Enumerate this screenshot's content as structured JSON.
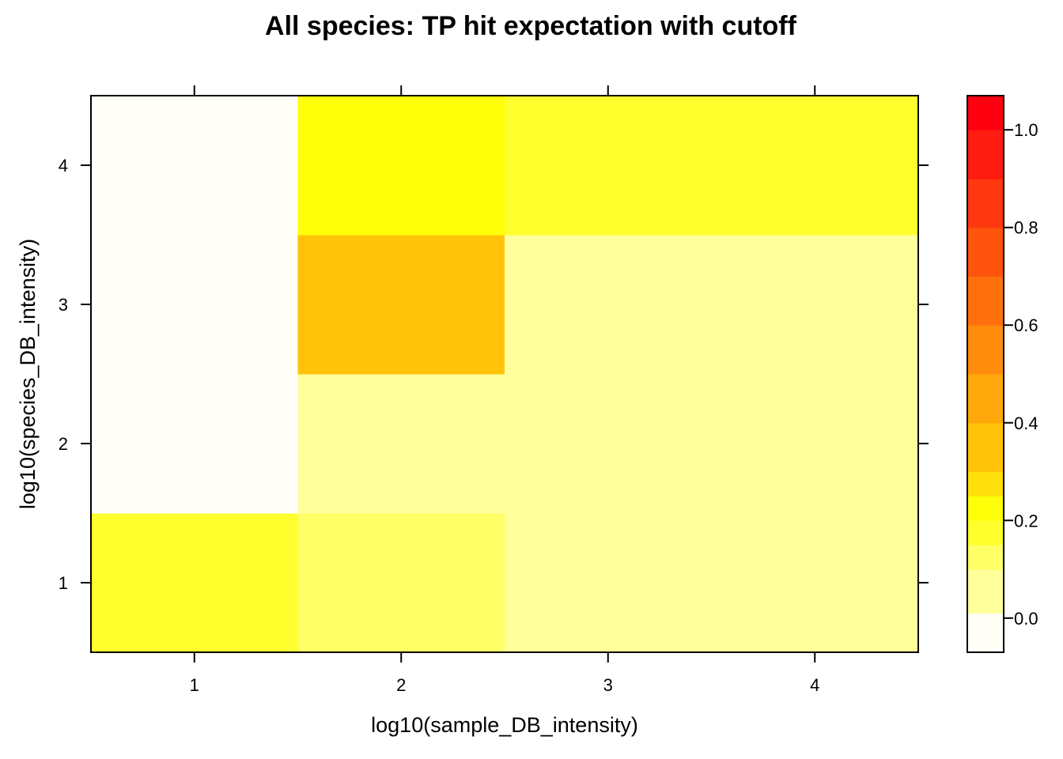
{
  "chart_data": {
    "type": "heatmap",
    "title": "All species: TP hit expectation with cutoff",
    "xlabel": "log10(sample_DB_intensity)",
    "ylabel": "log10(species_DB_intensity)",
    "x": [
      1,
      2,
      3,
      4
    ],
    "y": [
      1,
      2,
      3,
      4
    ],
    "xlim": [
      0.5,
      4.5
    ],
    "ylim": [
      0.5,
      4.5
    ],
    "x_ticks": [
      "1",
      "2",
      "3",
      "4"
    ],
    "y_ticks": [
      "1",
      "2",
      "3",
      "4"
    ],
    "values": [
      [
        0.19,
        0.13,
        0.05,
        0.05
      ],
      [
        0.0,
        0.05,
        0.05,
        0.05
      ],
      [
        0.0,
        0.32,
        0.05,
        0.05
      ],
      [
        0.0,
        0.23,
        0.19,
        0.19
      ]
    ],
    "colorbar": {
      "range": [
        -0.07,
        1.07
      ],
      "ticks": [
        0.0,
        0.2,
        0.4,
        0.6,
        0.8,
        1.0
      ],
      "tick_labels": [
        "0.0",
        "0.2",
        "0.4",
        "0.6",
        "0.8",
        "1.0"
      ],
      "bins": [
        {
          "max": 0.01,
          "color": "#FFFFF7"
        },
        {
          "max": 0.1,
          "color": "#FFFF9B"
        },
        {
          "max": 0.15,
          "color": "#FFFF66"
        },
        {
          "max": 0.2,
          "color": "#FFFF2E"
        },
        {
          "max": 0.25,
          "color": "#FFFF0A"
        },
        {
          "max": 0.3,
          "color": "#FFE00A"
        },
        {
          "max": 0.4,
          "color": "#FFC409"
        },
        {
          "max": 0.5,
          "color": "#FFA80B"
        },
        {
          "max": 0.6,
          "color": "#FF8C0C"
        },
        {
          "max": 0.7,
          "color": "#FF700D"
        },
        {
          "max": 0.8,
          "color": "#FF540E"
        },
        {
          "max": 0.9,
          "color": "#FF380F"
        },
        {
          "max": 1.0,
          "color": "#FF1C10"
        },
        {
          "max": 1.1,
          "color": "#FF0010"
        }
      ]
    },
    "grid": false,
    "legend": "right colorbar"
  }
}
